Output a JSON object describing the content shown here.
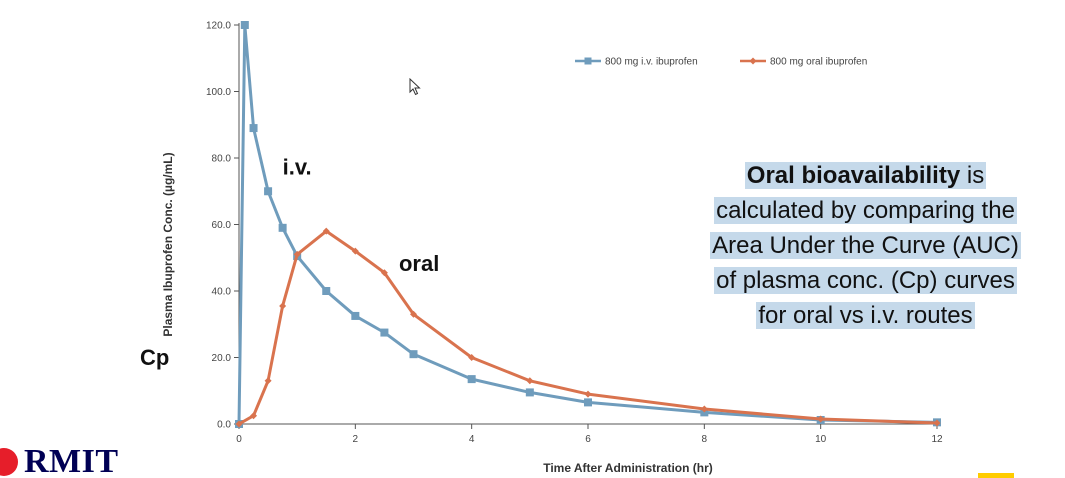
{
  "chart_data": {
    "type": "line",
    "ylabel": "Plasma Ibuprofen Conc. (µg/mL)",
    "xlabel": "Time After Administration (hr)",
    "xlim": [
      0,
      12
    ],
    "ylim": [
      0,
      120
    ],
    "x_ticks": [
      0,
      2,
      4,
      6,
      8,
      10,
      12
    ],
    "y_ticks": [
      0,
      20,
      40,
      60,
      80,
      100,
      120
    ],
    "y_tick_labels": [
      "0.0",
      "20.0",
      "40.0",
      "60.0",
      "80.0",
      "100.0",
      "120.0"
    ],
    "x_tick_labels": [
      "0",
      "2",
      "4",
      "6",
      "8",
      "10",
      "12"
    ],
    "grid": false,
    "legend_position": "top-right",
    "series": [
      {
        "name": "800 mg i.v. ibuprofen",
        "color": "#6f9cbc",
        "marker": "square",
        "x": [
          0,
          0.1,
          0.25,
          0.5,
          0.75,
          1,
          1.5,
          2,
          2.5,
          3,
          4,
          5,
          6,
          8,
          10,
          12
        ],
        "y": [
          0,
          120,
          89,
          70,
          59,
          50.5,
          40,
          32.5,
          27.5,
          21,
          13.5,
          9.5,
          6.5,
          3.5,
          1.2,
          0.5
        ]
      },
      {
        "name": "800 mg oral ibuprofen",
        "color": "#d9734e",
        "marker": "diamond",
        "x": [
          0,
          0.25,
          0.5,
          0.75,
          1,
          1.5,
          2,
          2.5,
          3,
          4,
          5,
          6,
          8,
          10,
          12
        ],
        "y": [
          0,
          2.5,
          13,
          35.5,
          51,
          58,
          52,
          45.5,
          33,
          20,
          13,
          9,
          4.5,
          1.5,
          0.3
        ]
      }
    ],
    "annotations": [
      {
        "text": "i.v.",
        "x": 0.75,
        "y": 75
      },
      {
        "text": "oral",
        "x": 2.75,
        "y": 46
      }
    ]
  },
  "labels": {
    "cp": "Cp"
  },
  "side_note": {
    "bold": "Oral bioavailability",
    "line1_rest": " is",
    "line2": "calculated by comparing the",
    "line3": "Area Under the Curve (AUC)",
    "line4": "of plasma conc. (Cp) curves",
    "line5": "for oral vs i.v. routes",
    "highlight_color": "#c5d9ea"
  },
  "logo": {
    "text": "RMIT",
    "dot_color": "#e61e2a",
    "text_color": "#000054"
  },
  "accent_color": "#ffcc00"
}
